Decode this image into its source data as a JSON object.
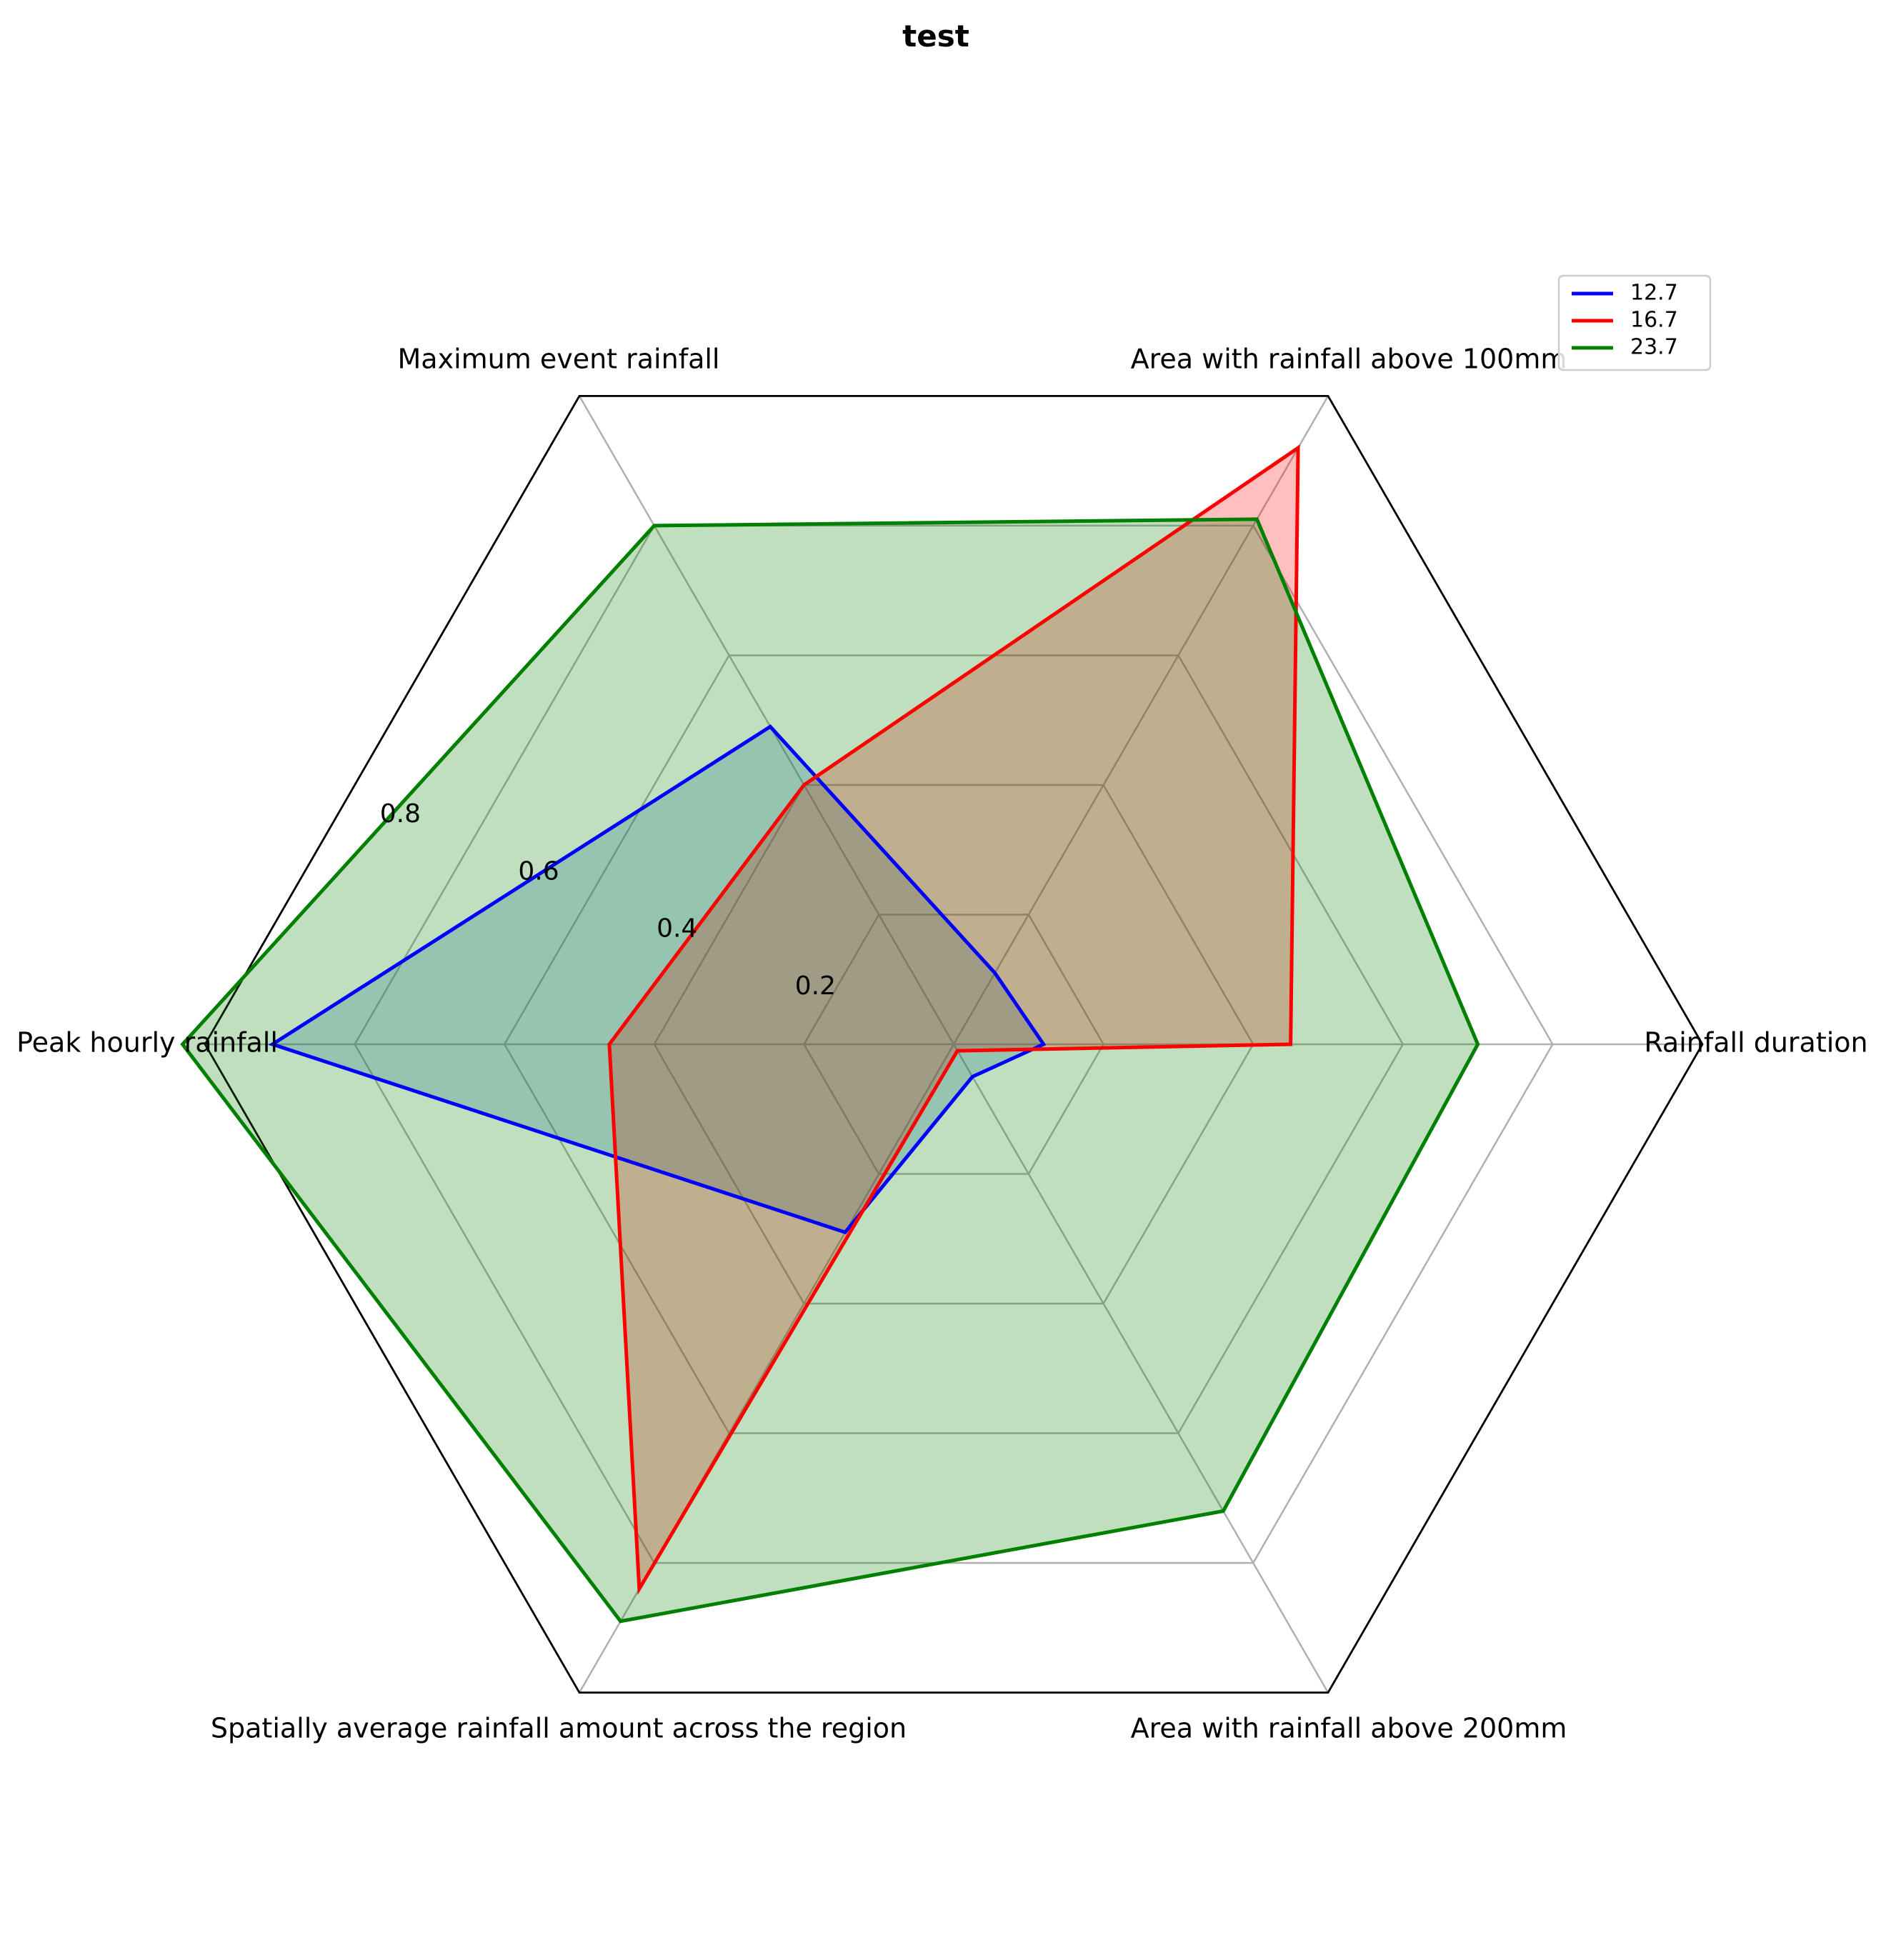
{
  "chart_data": {
    "type": "radar",
    "title": "test",
    "axes": [
      "Rainfall duration",
      "Area with rainfall above 100mm",
      "Maximum event rainfall",
      "Peak hourly rainfall",
      "Spatially average rainfall amount across the region",
      "Area with rainfall above 200mm"
    ],
    "radial_ticks": [
      "0.2",
      "0.4",
      "0.6",
      "0.8"
    ],
    "radial_tick_values": [
      0.2,
      0.4,
      0.6,
      0.8
    ],
    "rlim": [
      0,
      1.0
    ],
    "grid": true,
    "legend_position": "top-right",
    "series": [
      {
        "name": "12.7",
        "color": "#0000ff",
        "fill": "#1f77b4",
        "values": [
          0.12,
          0.11,
          0.49,
          0.91,
          0.29,
          0.05
        ]
      },
      {
        "name": "16.7",
        "color": "#ff0000",
        "fill": "#ff0000",
        "values": [
          0.45,
          0.92,
          0.4,
          0.46,
          0.84,
          0.01
        ]
      },
      {
        "name": "23.7",
        "color": "#008000",
        "fill": "#008000",
        "values": [
          0.7,
          0.81,
          0.8,
          1.03,
          0.89,
          0.72
        ]
      }
    ]
  }
}
